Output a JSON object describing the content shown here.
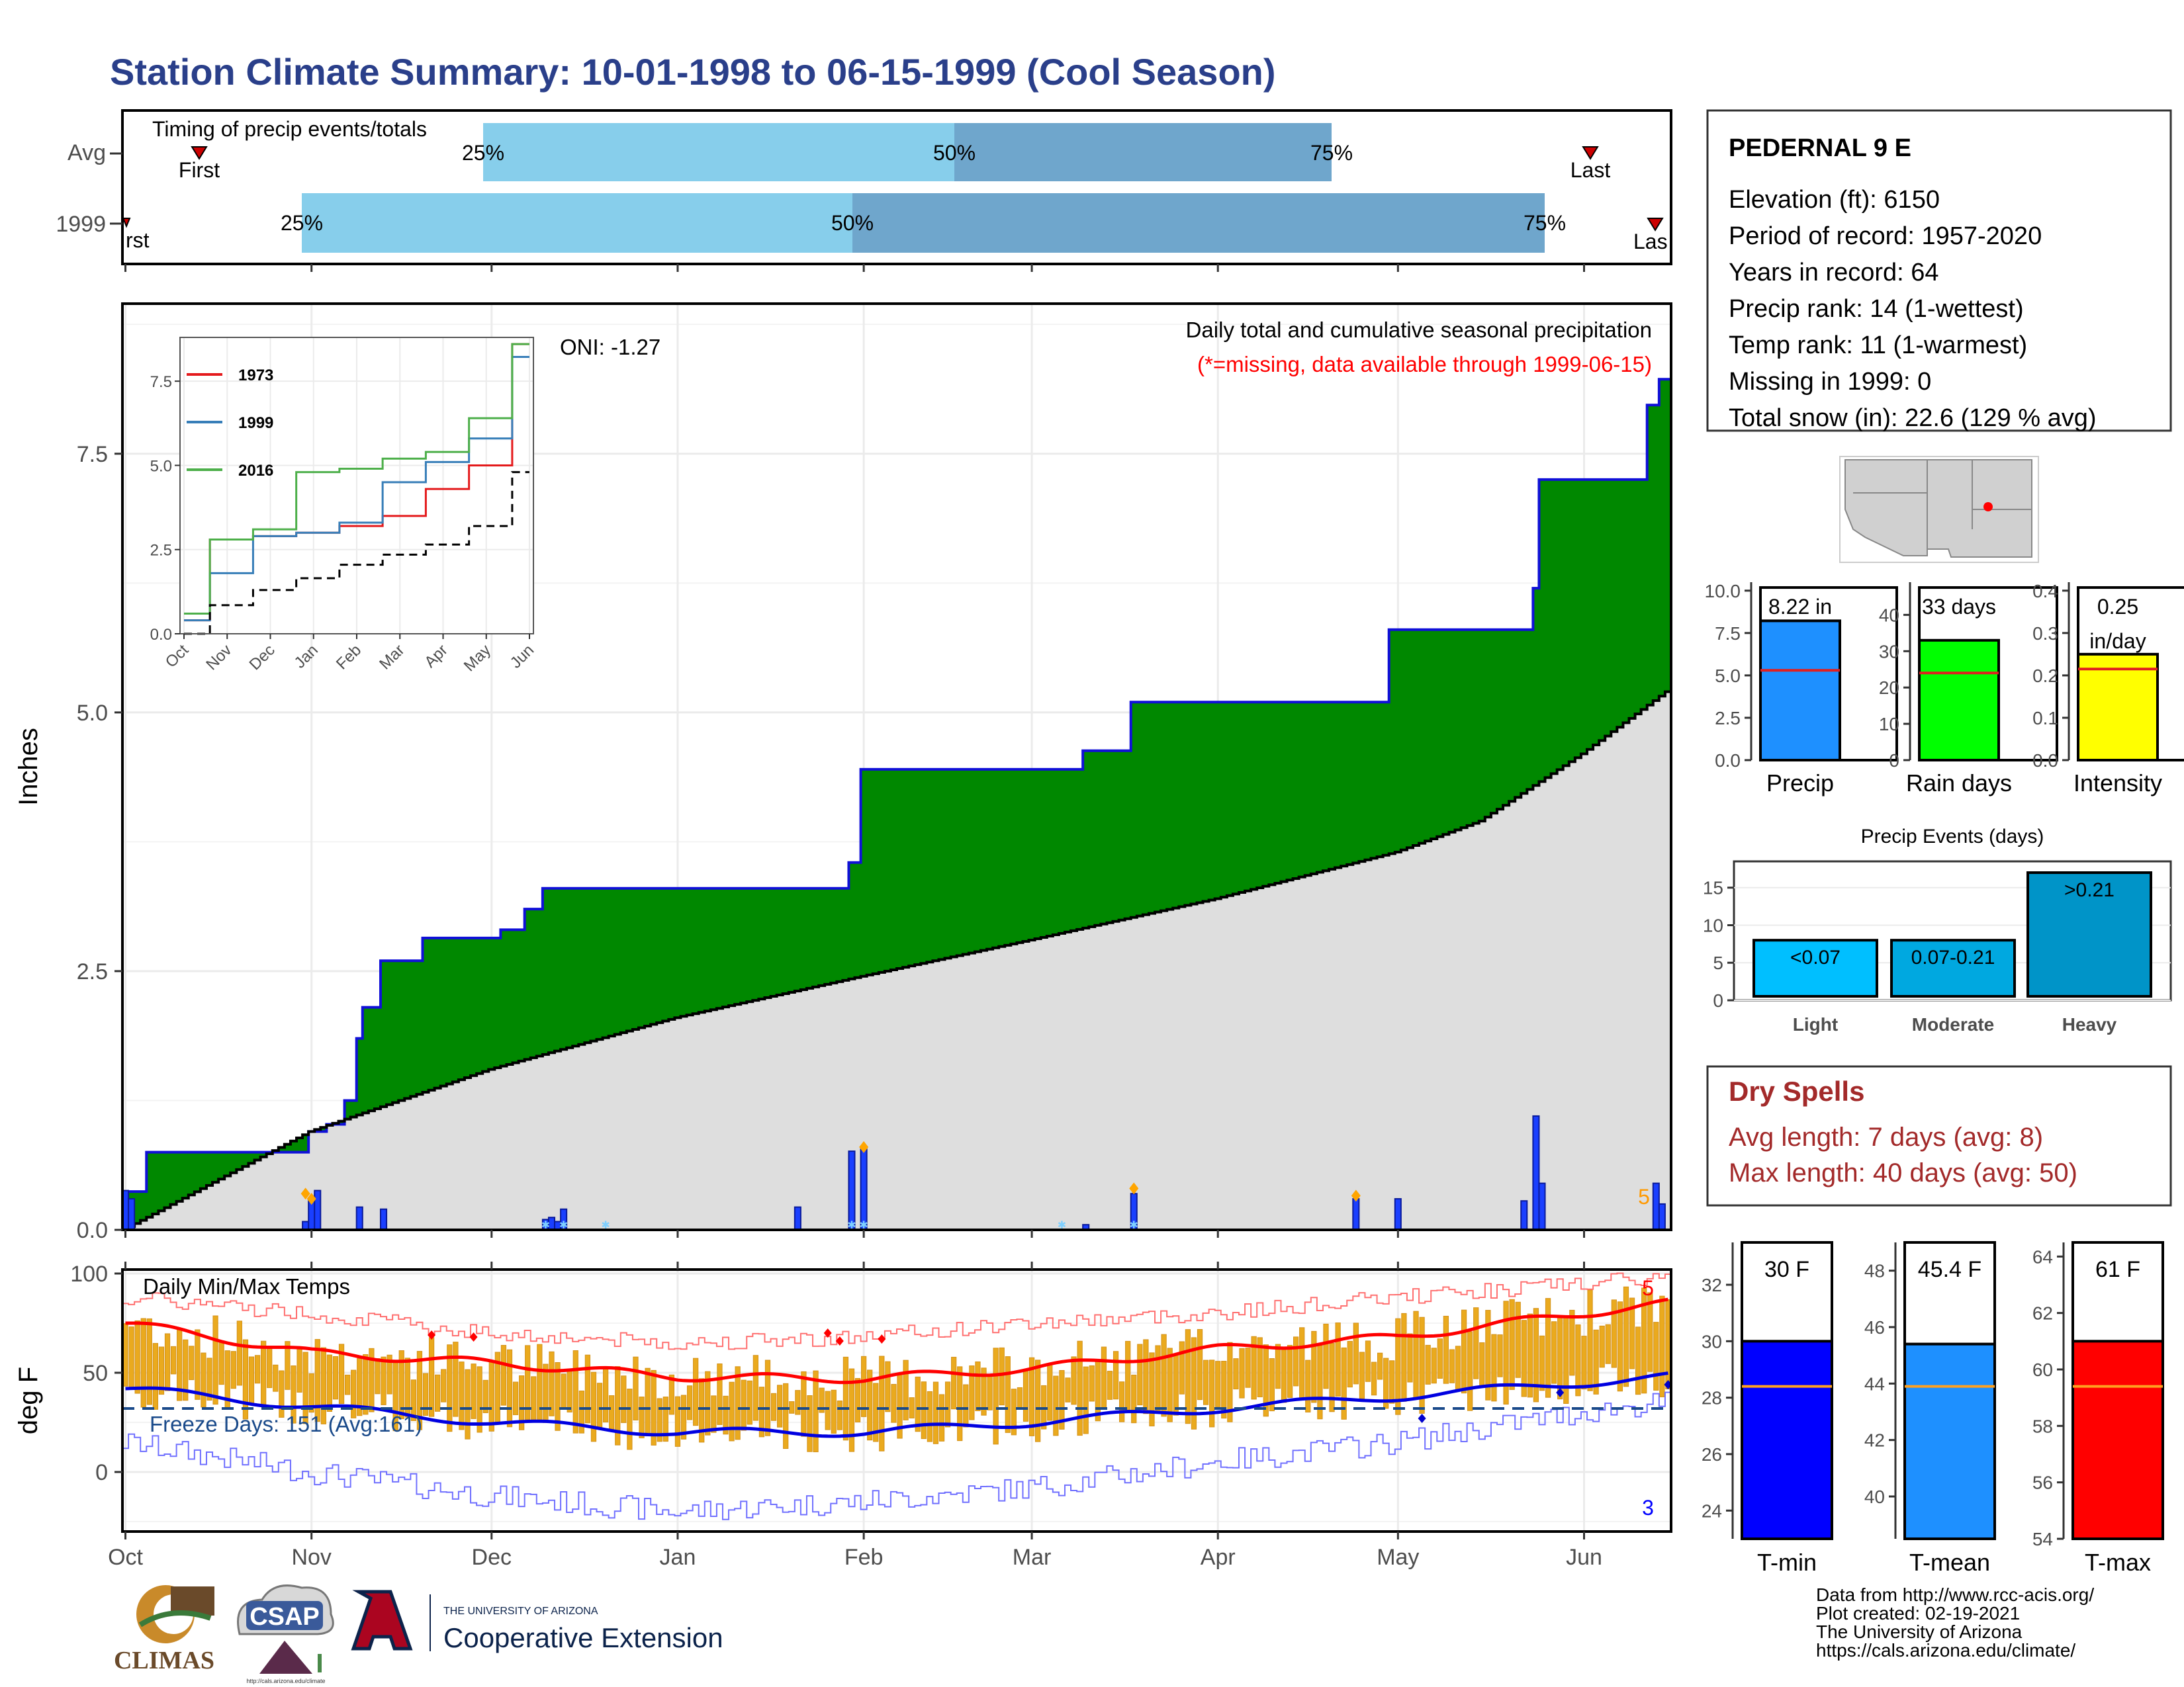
{
  "page_title": "Station Climate Summary: 10-01-1998 to 06-15-1999 (Cool Season)",
  "colors": {
    "title": "#2a3f8a",
    "cum_fill": "#008800",
    "cum_line": "#1010d8",
    "avg_fill": "#dedede",
    "daily_bar": "#1a3fff",
    "q1": "#87ceeb",
    "q2": "#6fa6cc",
    "tmax": "#ff0000",
    "tmin": "#0000ff",
    "range_bar": "#eaaa1e",
    "dryspell": "#a32a2a"
  },
  "timing": {
    "title": "Timing of precip events/totals",
    "rows": [
      "Avg",
      "1999"
    ],
    "pct_labels": [
      "25%",
      "50%",
      "75%"
    ],
    "first_label": "First",
    "last_label": "Last",
    "first_partial": "rst",
    "last_partial": "Las"
  },
  "precip_panel": {
    "ylabel": "Inches",
    "header": "Daily total and cumulative seasonal precipitation",
    "missing_note": "(*=missing, data available through 1999-06-15)",
    "oni": "ONI: -1.27",
    "corner_value": "5",
    "yticks": [
      "0.0",
      "2.5",
      "5.0",
      "7.5"
    ]
  },
  "temp_panel": {
    "ylabel": "deg F",
    "header": "Daily Min/Max Temps",
    "freeze": "Freeze Days: 151 (Avg:161)",
    "corner_top": "5",
    "corner_bottom": "3",
    "yticks": [
      "0",
      "50",
      "100"
    ],
    "months": [
      "Oct",
      "Nov",
      "Dec",
      "Jan",
      "Feb",
      "Mar",
      "Apr",
      "May",
      "Jun"
    ]
  },
  "station": {
    "name": "PEDERNAL 9 E",
    "lines": [
      "Elevation (ft): 6150",
      "Period of record: 1957-2020",
      "Years in record: 64",
      "Precip rank: 14 (1-wettest)",
      "Temp rank: 11 (1-warmest)",
      "Missing in 1999: 0",
      "Total snow (in): 22.6 (129 % avg)"
    ]
  },
  "dry_spells": {
    "title": "Dry Spells",
    "avg": "Avg length: 7 days (avg: 8)",
    "max": "Max length: 40 days (avg: 50)"
  },
  "summary_bars": [
    {
      "label": "Precip",
      "value": 8.22,
      "avg": 5.3,
      "text": "8.22 in",
      "ymax": 10.5,
      "ticks": [
        "0.0",
        "2.5",
        "5.0",
        "7.5",
        "10.0"
      ],
      "tickvals": [
        0,
        2.5,
        5,
        7.5,
        10
      ],
      "color": "#1e90ff"
    },
    {
      "label": "Rain days",
      "value": 33,
      "avg": 24,
      "text": "33 days",
      "ymax": 49,
      "ticks": [
        "0",
        "10",
        "20",
        "30",
        "40"
      ],
      "tickvals": [
        0,
        10,
        20,
        30,
        40
      ],
      "color": "#00ff00"
    },
    {
      "label": "Intensity",
      "value": 0.25,
      "avg": 0.215,
      "text": "0.25",
      "text2": "in/day",
      "ymax": 0.42,
      "ticks": [
        "0.0",
        "0.1",
        "0.2",
        "0.3",
        "0.4"
      ],
      "tickvals": [
        0,
        0.1,
        0.2,
        0.3,
        0.4
      ],
      "color": "#ffff00"
    }
  ],
  "events": {
    "title": "Precip Events (days)",
    "categories": [
      "Light",
      "Moderate",
      "Heavy"
    ],
    "bins": [
      "<0.07",
      "0.07-0.21",
      ">0.21"
    ],
    "values": [
      8,
      8,
      17
    ],
    "ymax": 18.5,
    "yticks": [
      "0",
      "5",
      "10",
      "15"
    ],
    "tickvals": [
      0,
      5,
      10,
      15
    ],
    "colors": [
      "#00bfff",
      "#00a8e0",
      "#0094c8"
    ]
  },
  "temp_bars": [
    {
      "label": "T-min",
      "value": 30,
      "avg": 28.4,
      "text": "30 F",
      "ymin": 23,
      "ymax": 33.5,
      "ticks": [
        "24",
        "26",
        "28",
        "30",
        "32"
      ],
      "tickvals": [
        24,
        26,
        28,
        30,
        32
      ],
      "color": "#0000ff"
    },
    {
      "label": "T-mean",
      "value": 45.4,
      "avg": 43.9,
      "text": "45.4 F",
      "ymin": 38.5,
      "ymax": 49,
      "ticks": [
        "40",
        "42",
        "44",
        "46",
        "48"
      ],
      "tickvals": [
        40,
        42,
        44,
        46,
        48
      ],
      "color": "#1e90ff"
    },
    {
      "label": "T-max",
      "value": 61,
      "avg": 59.4,
      "text": "61 F",
      "ymin": 54,
      "ymax": 64.5,
      "ticks": [
        "54",
        "56",
        "58",
        "60",
        "62",
        "64"
      ],
      "tickvals": [
        54,
        56,
        58,
        60,
        62,
        64
      ],
      "color": "#ff0000"
    }
  ],
  "credits": [
    "Data from http://www.rcc-acis.org/",
    "Plot created: 02-19-2021",
    "The University of Arizona",
    "https://cals.arizona.edu/climate/"
  ],
  "logos": {
    "climas": "CLIMAS",
    "csap": "CSAP",
    "csap_url": "http://cals.arizona.edu/climate",
    "ua_top": "THE UNIVERSITY OF ARIZONA",
    "ua_bottom": "Cooperative Extension"
  },
  "chart_data": [
    {
      "type": "area",
      "title": "Daily total and cumulative seasonal precipitation",
      "ylabel": "Inches",
      "ylim": [
        0,
        8.95
      ],
      "x_dates": [
        "1998-10-01",
        "1998-10-04",
        "1998-10-05",
        "1998-10-31",
        "1998-11-01",
        "1998-11-04",
        "1998-11-07",
        "1998-11-09",
        "1998-11-10",
        "1998-11-13",
        "1998-11-20",
        "1998-12-01",
        "1998-12-03",
        "1998-12-07",
        "1998-12-10",
        "1999-01-21",
        "1999-01-30",
        "1999-02-01",
        "1999-03-06",
        "1999-03-10",
        "1999-03-18",
        "1999-04-24",
        "1999-04-30",
        "1999-05-22",
        "1999-05-24",
        "1999-05-25",
        "1999-06-12",
        "1999-06-14"
      ],
      "cumulative": [
        0.37,
        0.37,
        0.75,
        0.75,
        0.95,
        1.02,
        1.25,
        1.85,
        2.15,
        2.6,
        2.82,
        2.82,
        2.9,
        3.1,
        3.3,
        3.3,
        3.55,
        4.45,
        4.45,
        4.63,
        5.1,
        5.1,
        5.8,
        5.8,
        6.2,
        7.25,
        7.97,
        8.22
      ],
      "avg_cumulative": {
        "x_dates": [
          "1998-10-01",
          "1998-11-01",
          "1998-12-01",
          "1999-01-01",
          "1999-02-01",
          "1999-03-01",
          "1999-04-01",
          "1999-05-01",
          "1999-05-15",
          "1999-06-01",
          "1999-06-15"
        ],
        "values": [
          0.0,
          0.95,
          1.55,
          2.05,
          2.45,
          2.8,
          3.2,
          3.65,
          3.95,
          4.6,
          5.2
        ]
      },
      "daily": {
        "x_dates": [
          "1998-10-01",
          "1998-10-02",
          "1998-10-31",
          "1998-11-01",
          "1998-11-02",
          "1998-11-09",
          "1998-11-13",
          "1998-12-10",
          "1998-12-11",
          "1998-12-12",
          "1998-12-13",
          "1999-01-21",
          "1999-01-30",
          "1999-02-01",
          "1999-03-10",
          "1999-03-18",
          "1999-04-24",
          "1999-05-01",
          "1999-05-22",
          "1999-05-24",
          "1999-05-25",
          "1999-06-13",
          "1999-06-14"
        ],
        "values": [
          0.38,
          0.3,
          0.08,
          0.3,
          0.38,
          0.22,
          0.2,
          0.1,
          0.12,
          0.08,
          0.2,
          0.22,
          0.76,
          0.78,
          0.05,
          0.35,
          0.3,
          0.3,
          0.28,
          1.1,
          0.45,
          0.45,
          0.25
        ]
      }
    },
    {
      "type": "line",
      "title": "",
      "categories": [
        "Oct",
        "Nov",
        "Dec",
        "Jan",
        "Feb",
        "Mar",
        "Apr",
        "May",
        "Jun"
      ],
      "ylim": [
        0,
        8.8
      ],
      "yticks": [
        0.0,
        2.5,
        5.0,
        7.5
      ],
      "series": [
        {
          "name": "1973",
          "values": [
            0.4,
            2.8,
            2.9,
            3.0,
            3.2,
            3.5,
            4.3,
            5.0,
            8.6
          ]
        },
        {
          "name": "1999",
          "values": [
            0.4,
            1.8,
            2.9,
            3.0,
            3.3,
            4.5,
            5.1,
            5.8,
            8.22
          ]
        },
        {
          "name": "2016",
          "values": [
            0.6,
            2.8,
            3.1,
            4.8,
            4.9,
            5.2,
            5.4,
            6.4,
            8.6
          ]
        },
        {
          "values": [
            0.0,
            0.85,
            1.3,
            1.65,
            2.05,
            2.35,
            2.65,
            3.2,
            4.8
          ]
        }
      ]
    },
    {
      "type": "line",
      "title": "Daily Min/Max Temps",
      "ylabel": "deg F",
      "ylim": [
        -30,
        102
      ],
      "x_dates": [
        "1998-10-01",
        "1998-11-01",
        "1998-12-01",
        "1999-01-01",
        "1999-02-01",
        "1999-03-01",
        "1999-04-01",
        "1999-05-01",
        "1999-06-01",
        "1999-06-15"
      ],
      "series": [
        {
          "values": [
            75,
            60,
            55,
            48,
            47,
            52,
            62,
            68,
            80,
            85
          ]
        },
        {
          "values": [
            42,
            33,
            25,
            20,
            20,
            25,
            32,
            38,
            45,
            48
          ]
        },
        {
          "values": [
            88,
            80,
            70,
            65,
            68,
            75,
            80,
            88,
            95,
            98
          ]
        },
        {
          "values": [
            15,
            0,
            -12,
            -20,
            -15,
            -8,
            5,
            15,
            30,
            35
          ]
        }
      ],
      "freeze_line": 32
    },
    {
      "type": "bar",
      "categories": [
        "Light",
        "Moderate",
        "Heavy"
      ],
      "values": [
        8,
        8,
        17
      ],
      "title": "Precip Events (days)"
    }
  ]
}
